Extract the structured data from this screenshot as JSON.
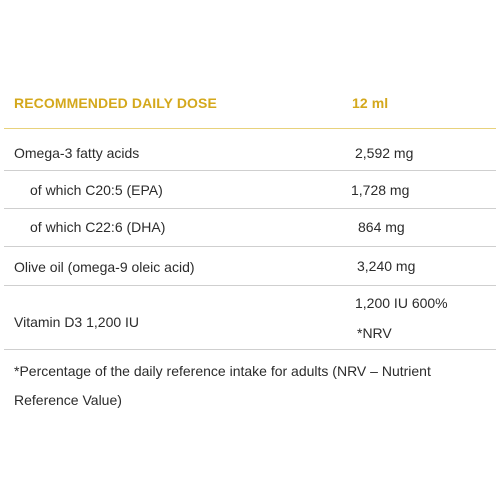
{
  "header": {
    "label": "RECOMMENDED DAILY DOSE",
    "value": "12 ml"
  },
  "rows": [
    {
      "name": "Omega-3 fatty acids",
      "value": "2,592 mg"
    },
    {
      "name": "of which C20:5 (EPA)",
      "value": "1,728 mg"
    },
    {
      "name": "of which C22:6 (DHA)",
      "value": "864 mg"
    },
    {
      "name": "Olive oil (omega-9 oleic acid)",
      "value": "3,240 mg"
    },
    {
      "name": "Vitamin D3 1,200 IU",
      "value_line1": "1,200 IU 600%",
      "value_line2": "*NRV"
    }
  ],
  "footnote": "*Percentage of the daily reference intake for adults (NRV – Nutrient Reference Value)",
  "colors": {
    "accent": "#d4a81c",
    "text": "#2b2b2b",
    "divider": "#cfcfcf",
    "header_divider": "#e8d27c"
  }
}
